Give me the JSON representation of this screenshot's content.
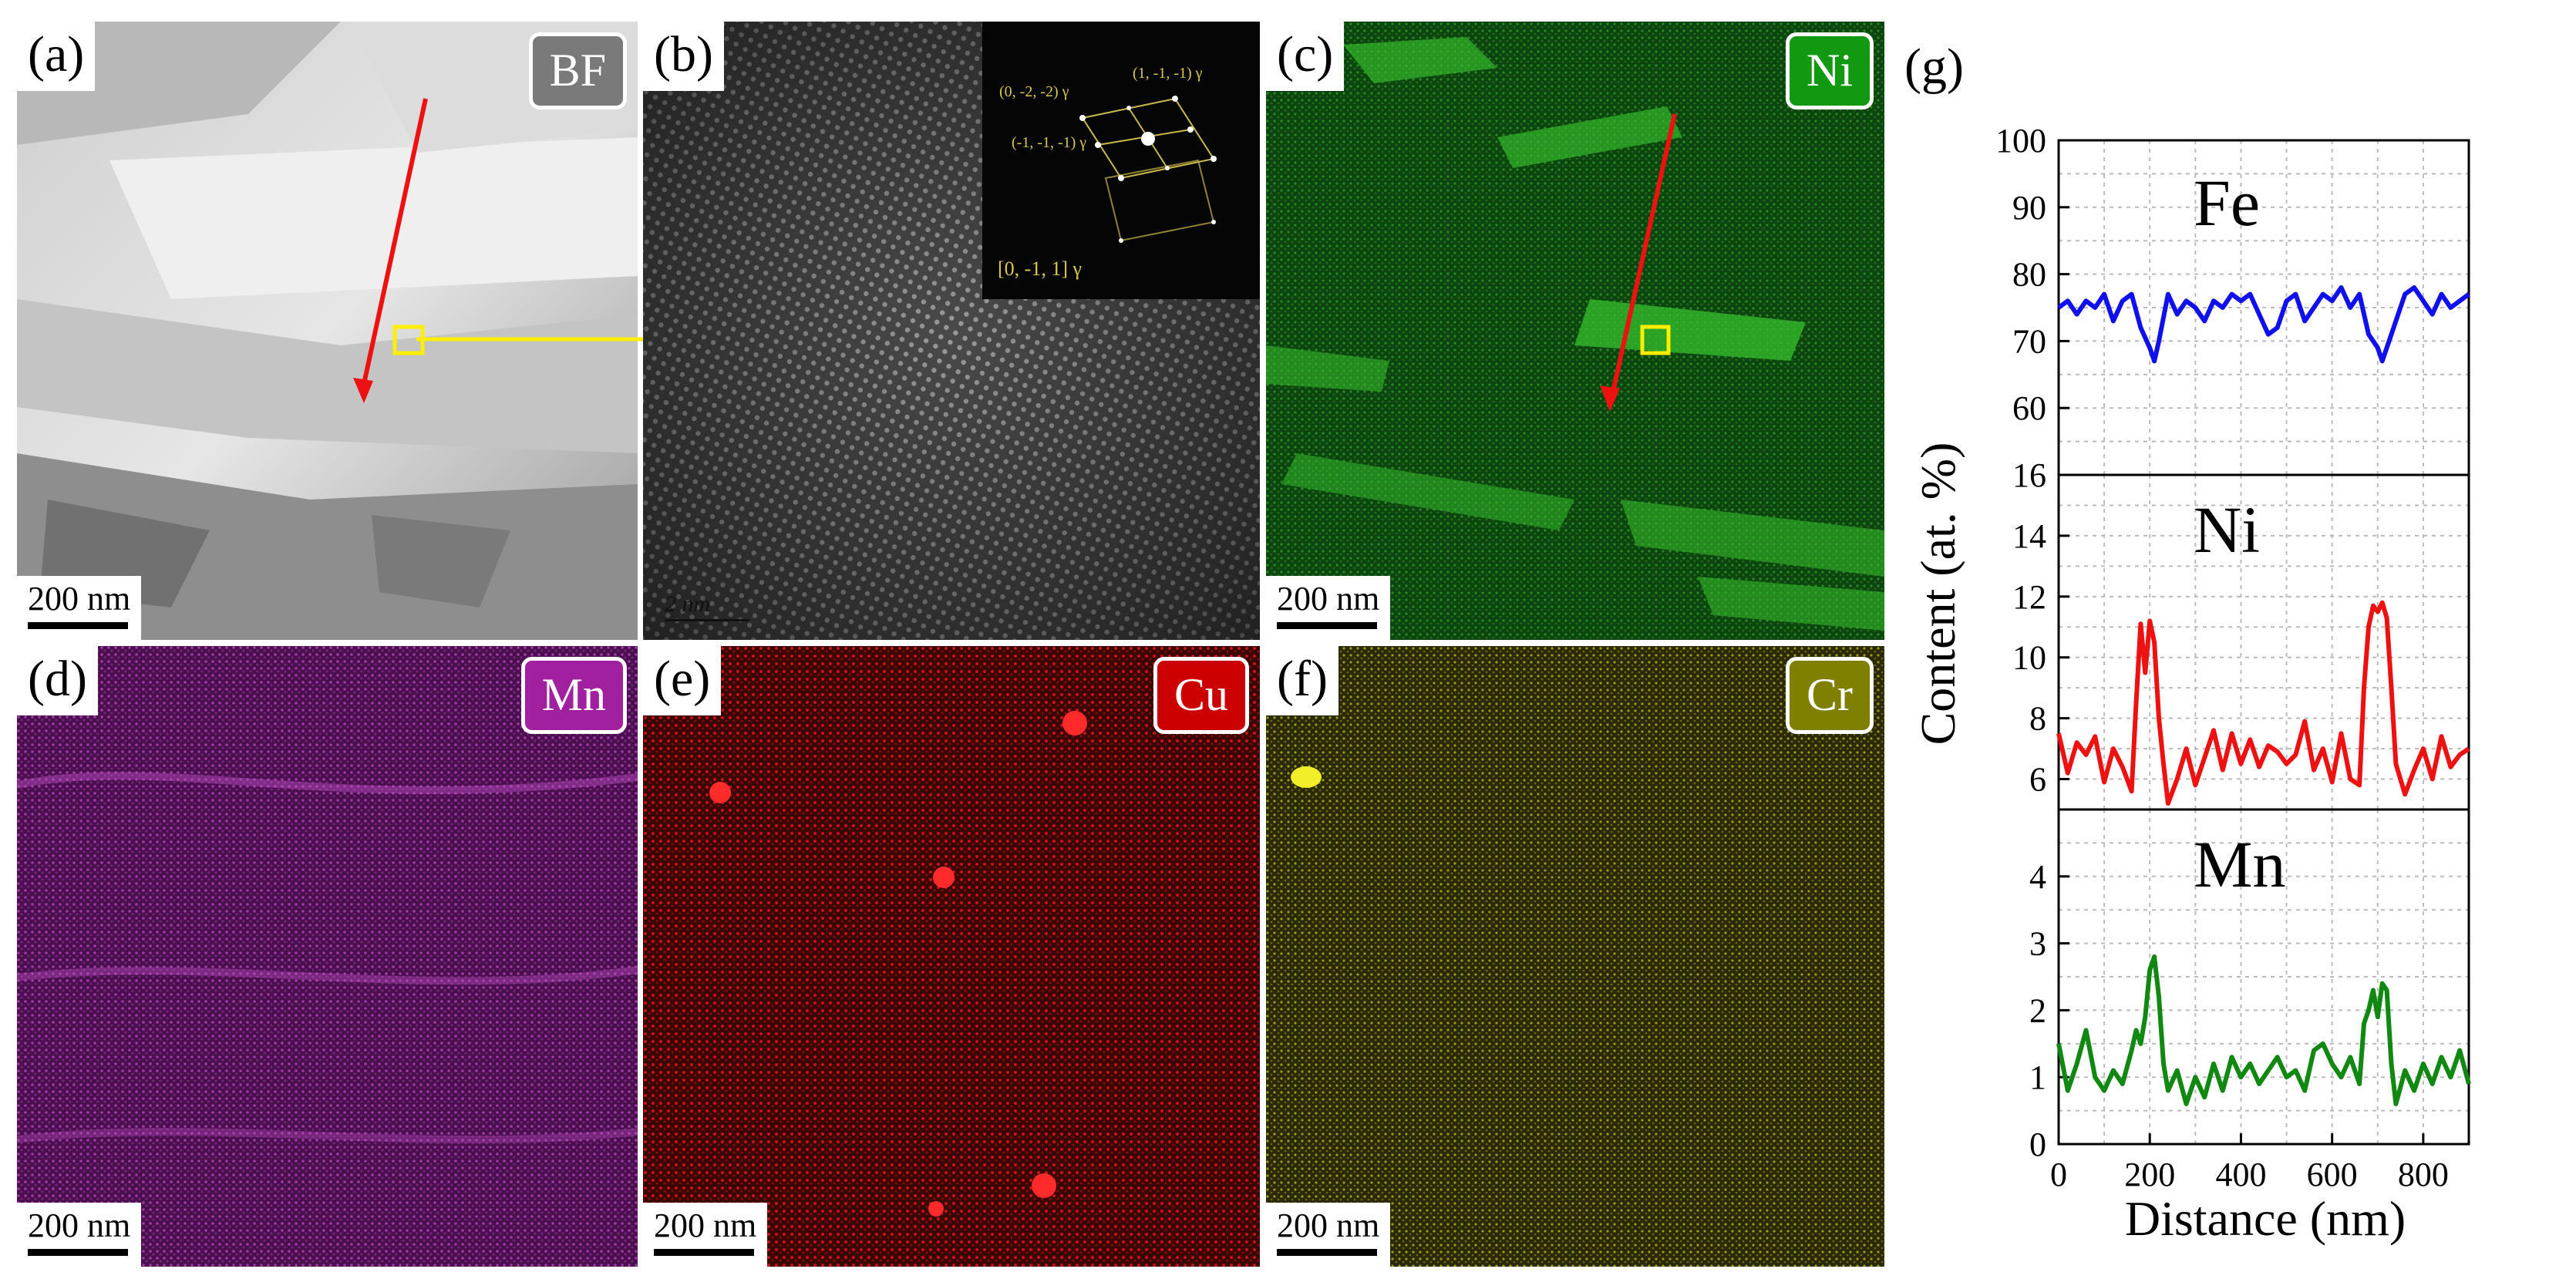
{
  "panels": {
    "a": {
      "label": "(a)",
      "badge": "BF",
      "scale": "200 nm"
    },
    "b": {
      "label": "(b)",
      "scale": "2 nm",
      "fft": {
        "spot1": "(0, -2, -2) γ",
        "spot2": "(1, -1, -1) γ",
        "spot3": "(-1, -1, -1) γ",
        "zone": "[0, -1, 1] γ"
      }
    },
    "c": {
      "label": "(c)",
      "badge": "Ni",
      "scale": "200 nm"
    },
    "d": {
      "label": "(d)",
      "badge": "Mn",
      "scale": "200 nm"
    },
    "e": {
      "label": "(e)",
      "badge": "Cu",
      "scale": "200 nm"
    },
    "f": {
      "label": "(f)",
      "badge": "Cr",
      "scale": "200 nm"
    },
    "g": {
      "label": "(g)"
    }
  },
  "colors": {
    "Ni": "#119911",
    "Mn": "#a020a0",
    "Cu": "#cc0000",
    "Cr": "#808000",
    "BF": "#7a7a7a",
    "arrow_red": "#ee1111",
    "marker_yellow": "#ffee00"
  },
  "chart_data": {
    "type": "line",
    "ylabel": "Content (at. %)",
    "xlabel": "Distance (nm)",
    "xlim": [
      0,
      900
    ],
    "xticks": [
      0,
      200,
      400,
      600,
      800
    ],
    "grid": true,
    "subplots": [
      {
        "name": "Fe",
        "color": "#1010ee",
        "ylim": [
          50,
          100
        ],
        "yticks": [
          60,
          70,
          80,
          90,
          100
        ],
        "x": [
          0,
          20,
          40,
          60,
          80,
          100,
          120,
          140,
          160,
          180,
          200,
          210,
          220,
          240,
          260,
          280,
          300,
          320,
          340,
          360,
          380,
          400,
          420,
          440,
          460,
          480,
          500,
          520,
          540,
          560,
          580,
          600,
          620,
          640,
          660,
          680,
          700,
          710,
          720,
          740,
          760,
          780,
          800,
          820,
          840,
          860,
          880,
          900
        ],
        "y": [
          75,
          76,
          74,
          76,
          75,
          77,
          73,
          76,
          77,
          72,
          69,
          67,
          70,
          77,
          74,
          76,
          75,
          73,
          76,
          75,
          77,
          76,
          77,
          74,
          71,
          72,
          76,
          77,
          73,
          75,
          77,
          76,
          78,
          75,
          77,
          71,
          69,
          67,
          69,
          73,
          77,
          78,
          76,
          74,
          77,
          75,
          76,
          77
        ]
      },
      {
        "name": "Ni",
        "color": "#ee1111",
        "ylim": [
          5,
          16
        ],
        "yticks": [
          6,
          8,
          10,
          12,
          14,
          16
        ],
        "x": [
          0,
          20,
          40,
          60,
          80,
          100,
          120,
          140,
          160,
          170,
          180,
          190,
          200,
          210,
          220,
          230,
          240,
          260,
          280,
          300,
          320,
          340,
          360,
          380,
          400,
          420,
          440,
          460,
          480,
          500,
          520,
          540,
          560,
          580,
          600,
          620,
          640,
          660,
          670,
          680,
          690,
          700,
          710,
          720,
          730,
          740,
          760,
          780,
          800,
          820,
          840,
          860,
          880,
          900
        ],
        "y": [
          7.5,
          6.2,
          7.2,
          6.8,
          7.4,
          5.9,
          7.0,
          6.4,
          5.6,
          8.5,
          11.1,
          9.5,
          11.2,
          10.5,
          8.0,
          6.5,
          5.2,
          6.0,
          7.0,
          5.8,
          6.7,
          7.6,
          6.3,
          7.5,
          6.5,
          7.3,
          6.4,
          7.1,
          6.9,
          6.5,
          6.8,
          7.9,
          6.3,
          7.0,
          5.9,
          7.5,
          6.0,
          5.8,
          9.0,
          11.0,
          11.7,
          11.5,
          11.8,
          11.3,
          9.0,
          6.5,
          5.5,
          6.3,
          7.0,
          6.0,
          7.4,
          6.4,
          6.8,
          7.0
        ]
      },
      {
        "name": "Mn",
        "color": "#118811",
        "ylim": [
          0,
          5
        ],
        "yticks": [
          0,
          1,
          2,
          3,
          4
        ],
        "x": [
          0,
          20,
          40,
          60,
          80,
          100,
          120,
          140,
          160,
          170,
          180,
          190,
          200,
          210,
          220,
          230,
          240,
          260,
          280,
          300,
          320,
          340,
          360,
          380,
          400,
          420,
          440,
          460,
          480,
          500,
          520,
          540,
          560,
          580,
          600,
          620,
          640,
          660,
          670,
          680,
          690,
          700,
          710,
          720,
          730,
          740,
          760,
          780,
          800,
          820,
          840,
          860,
          880,
          900
        ],
        "y": [
          1.5,
          0.8,
          1.2,
          1.7,
          1.0,
          0.8,
          1.1,
          0.9,
          1.4,
          1.7,
          1.5,
          1.9,
          2.6,
          2.8,
          2.2,
          1.2,
          0.8,
          1.1,
          0.6,
          1.0,
          0.7,
          1.2,
          0.8,
          1.3,
          1.0,
          1.2,
          0.9,
          1.1,
          1.3,
          1.0,
          1.1,
          0.8,
          1.4,
          1.5,
          1.2,
          1.0,
          1.3,
          0.9,
          1.8,
          2.0,
          2.3,
          1.9,
          2.4,
          2.3,
          1.2,
          0.6,
          1.1,
          0.8,
          1.2,
          0.9,
          1.3,
          1.0,
          1.4,
          0.9
        ]
      }
    ]
  }
}
